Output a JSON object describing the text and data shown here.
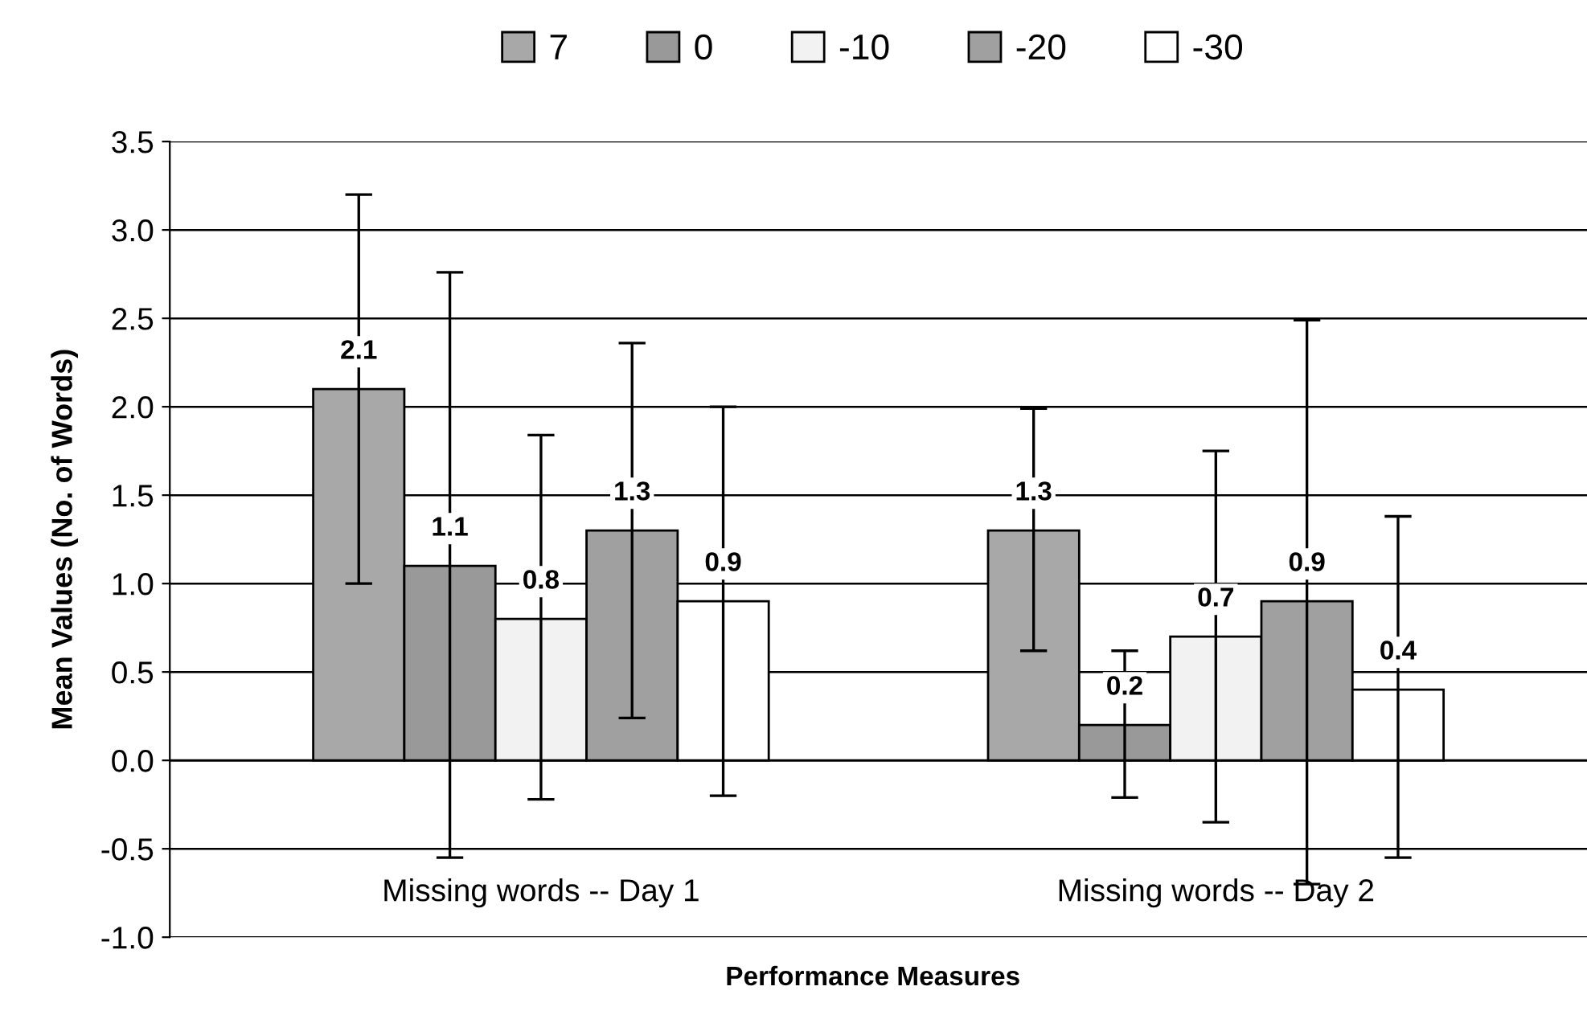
{
  "chart_data": {
    "type": "bar",
    "xlabel": "Performance Measures",
    "ylabel": "Mean Values (No. of Words)",
    "categories": [
      "Missing words -- Day 1",
      "Missing words -- Day 2"
    ],
    "series": [
      {
        "name": "7",
        "color": "#a8a8a8",
        "values": [
          2.1,
          1.3
        ],
        "errors": [
          [
            1.0,
            3.2
          ],
          [
            0.62,
            1.99
          ]
        ]
      },
      {
        "name": "0",
        "color": "#999999",
        "values": [
          1.1,
          0.2
        ],
        "errors": [
          [
            -0.55,
            2.76
          ],
          [
            -0.21,
            0.62
          ]
        ]
      },
      {
        "name": "-10",
        "color": "#f2f2f2",
        "values": [
          0.8,
          0.7
        ],
        "errors": [
          [
            -0.22,
            1.84
          ],
          [
            -0.35,
            1.75
          ]
        ]
      },
      {
        "name": "-20",
        "color": "#a0a0a0",
        "values": [
          1.3,
          0.9
        ],
        "errors": [
          [
            0.24,
            2.36
          ],
          [
            -0.7,
            2.49
          ]
        ]
      },
      {
        "name": "-30",
        "color": "#ffffff",
        "values": [
          0.9,
          0.4
        ],
        "errors": [
          [
            -0.2,
            2.0
          ],
          [
            -0.55,
            1.38
          ]
        ]
      }
    ],
    "ylim": [
      -1.0,
      3.5
    ],
    "yticks": [
      {
        "value": -1.0,
        "label": "-1.0"
      },
      {
        "value": -0.5,
        "label": "-0.5"
      },
      {
        "value": 0,
        "label": "0.0"
      },
      {
        "value": 0.5,
        "label": "0.5"
      },
      {
        "value": 1.0,
        "label": "1.0"
      },
      {
        "value": 1.5,
        "label": "1.5"
      },
      {
        "value": 2.0,
        "label": "2.0"
      },
      {
        "value": 2.5,
        "label": "2.5"
      },
      {
        "value": 3.0,
        "label": "3.0"
      },
      {
        "value": 3.5,
        "label": "3.5"
      }
    ],
    "grid": "y",
    "legend": "top",
    "data_labels": true
  }
}
